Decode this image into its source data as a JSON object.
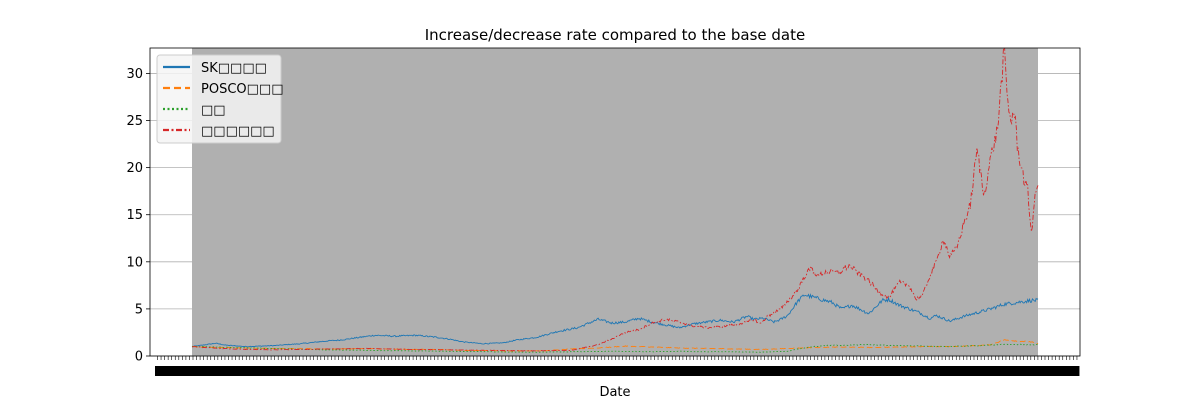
{
  "chart_data": {
    "type": "line",
    "title": "Increase/decrease rate compared to the base date",
    "xlabel": "Date",
    "ylabel": "",
    "ylim": [
      0,
      32.7
    ],
    "yticks": [
      0,
      5,
      10,
      15,
      20,
      25,
      30
    ],
    "grid": "horizontal",
    "plot_background": "#b0b0b0",
    "legend_position": "upper-left",
    "x_tick_labels_note": "overlapping, illegible",
    "series": [
      {
        "name": "SK□□□□",
        "color": "#1f77b4",
        "style": "solid",
        "keypoints": [
          [
            0,
            1.0
          ],
          [
            0.02,
            1.2
          ],
          [
            0.035,
            1.35
          ],
          [
            0.05,
            1.15
          ],
          [
            0.08,
            1.0
          ],
          [
            0.12,
            1.1
          ],
          [
            0.16,
            1.3
          ],
          [
            0.2,
            1.6
          ],
          [
            0.22,
            1.7
          ],
          [
            0.25,
            2.0
          ],
          [
            0.27,
            2.2
          ],
          [
            0.3,
            2.1
          ],
          [
            0.33,
            2.2
          ],
          [
            0.36,
            2.0
          ],
          [
            0.38,
            1.8
          ],
          [
            0.4,
            1.5
          ],
          [
            0.43,
            1.3
          ],
          [
            0.46,
            1.4
          ],
          [
            0.48,
            1.7
          ],
          [
            0.51,
            2.0
          ],
          [
            0.54,
            2.6
          ],
          [
            0.57,
            3.0
          ],
          [
            0.6,
            3.9
          ],
          [
            0.62,
            3.5
          ],
          [
            0.64,
            3.6
          ],
          [
            0.66,
            4.0
          ],
          [
            0.68,
            3.6
          ],
          [
            0.7,
            3.3
          ],
          [
            0.72,
            3.0
          ],
          [
            0.74,
            3.4
          ],
          [
            0.76,
            3.6
          ],
          [
            0.78,
            3.8
          ],
          [
            0.8,
            3.6
          ],
          [
            0.82,
            4.2
          ],
          [
            0.83,
            3.9
          ],
          [
            0.845,
            4.0
          ],
          [
            0.86,
            3.6
          ],
          [
            0.87,
            3.9
          ],
          [
            0.88,
            4.3
          ],
          [
            0.895,
            5.8
          ],
          [
            0.905,
            6.5
          ],
          [
            0.915,
            6.3
          ],
          [
            0.93,
            6.0
          ],
          [
            0.945,
            5.7
          ],
          [
            0.96,
            5.0
          ],
          [
            0.975,
            5.4
          ],
          [
            1.0,
            4.5
          ],
          [
            1.02,
            5.9
          ],
          [
            1.03,
            6.0
          ],
          [
            1.045,
            5.4
          ],
          [
            1.06,
            5.0
          ],
          [
            1.075,
            4.6
          ],
          [
            1.09,
            4.0
          ],
          [
            1.1,
            4.3
          ],
          [
            1.12,
            3.7
          ],
          [
            1.14,
            4.2
          ],
          [
            1.16,
            4.6
          ],
          [
            1.18,
            5.0
          ],
          [
            1.2,
            5.5
          ],
          [
            1.22,
            5.7
          ],
          [
            1.24,
            5.9
          ],
          [
            1.25,
            5.9
          ]
        ]
      },
      {
        "name": "POSCO□□□",
        "color": "#ff7f0e",
        "style": "dashed",
        "keypoints": [
          [
            0,
            1.0
          ],
          [
            0.04,
            0.9
          ],
          [
            0.08,
            0.85
          ],
          [
            0.12,
            0.8
          ],
          [
            0.16,
            0.78
          ],
          [
            0.2,
            0.75
          ],
          [
            0.26,
            0.78
          ],
          [
            0.32,
            0.7
          ],
          [
            0.36,
            0.7
          ],
          [
            0.4,
            0.6
          ],
          [
            0.46,
            0.55
          ],
          [
            0.52,
            0.55
          ],
          [
            0.56,
            0.75
          ],
          [
            0.6,
            0.85
          ],
          [
            0.64,
            1.05
          ],
          [
            0.68,
            0.95
          ],
          [
            0.72,
            0.85
          ],
          [
            0.76,
            0.8
          ],
          [
            0.8,
            0.75
          ],
          [
            0.84,
            0.7
          ],
          [
            0.88,
            0.8
          ],
          [
            0.92,
            0.9
          ],
          [
            0.96,
            0.95
          ],
          [
            1.0,
            0.9
          ],
          [
            1.04,
            0.95
          ],
          [
            1.08,
            1.0
          ],
          [
            1.12,
            1.0
          ],
          [
            1.16,
            1.1
          ],
          [
            1.18,
            1.2
          ],
          [
            1.2,
            1.7
          ],
          [
            1.22,
            1.6
          ],
          [
            1.24,
            1.5
          ],
          [
            1.25,
            1.3
          ]
        ]
      },
      {
        "name": "□□",
        "color": "#2ca02c",
        "style": "dotted",
        "keypoints": [
          [
            0,
            1.0
          ],
          [
            0.04,
            0.95
          ],
          [
            0.08,
            0.85
          ],
          [
            0.12,
            0.8
          ],
          [
            0.16,
            0.72
          ],
          [
            0.2,
            0.65
          ],
          [
            0.26,
            0.6
          ],
          [
            0.32,
            0.55
          ],
          [
            0.38,
            0.5
          ],
          [
            0.44,
            0.45
          ],
          [
            0.5,
            0.4
          ],
          [
            0.56,
            0.45
          ],
          [
            0.62,
            0.5
          ],
          [
            0.68,
            0.45
          ],
          [
            0.72,
            0.5
          ],
          [
            0.76,
            0.45
          ],
          [
            0.8,
            0.45
          ],
          [
            0.84,
            0.4
          ],
          [
            0.88,
            0.5
          ],
          [
            0.9,
            0.8
          ],
          [
            0.93,
            1.1
          ],
          [
            0.96,
            1.15
          ],
          [
            1.0,
            1.2
          ],
          [
            1.04,
            1.1
          ],
          [
            1.08,
            1.05
          ],
          [
            1.12,
            1.0
          ],
          [
            1.16,
            1.1
          ],
          [
            1.2,
            1.25
          ],
          [
            1.25,
            1.2
          ]
        ]
      },
      {
        "name": "□□□□□□",
        "color": "#d62728",
        "style": "dashdot",
        "keypoints": [
          [
            0,
            1.0
          ],
          [
            0.04,
            0.8
          ],
          [
            0.08,
            0.7
          ],
          [
            0.12,
            0.65
          ],
          [
            0.16,
            0.7
          ],
          [
            0.2,
            0.75
          ],
          [
            0.26,
            0.8
          ],
          [
            0.32,
            0.7
          ],
          [
            0.38,
            0.65
          ],
          [
            0.44,
            0.6
          ],
          [
            0.5,
            0.55
          ],
          [
            0.56,
            0.6
          ],
          [
            0.6,
            1.2
          ],
          [
            0.62,
            1.8
          ],
          [
            0.64,
            2.5
          ],
          [
            0.66,
            2.8
          ],
          [
            0.68,
            3.5
          ],
          [
            0.7,
            3.9
          ],
          [
            0.72,
            3.6
          ],
          [
            0.74,
            3.2
          ],
          [
            0.76,
            3.0
          ],
          [
            0.78,
            3.1
          ],
          [
            0.8,
            3.3
          ],
          [
            0.82,
            3.6
          ],
          [
            0.83,
            3.9
          ],
          [
            0.84,
            3.4
          ],
          [
            0.85,
            4.2
          ],
          [
            0.86,
            4.6
          ],
          [
            0.87,
            5.0
          ],
          [
            0.88,
            5.8
          ],
          [
            0.895,
            7.0
          ],
          [
            0.905,
            8.5
          ],
          [
            0.915,
            9.3
          ],
          [
            0.925,
            8.5
          ],
          [
            0.94,
            9.0
          ],
          [
            0.955,
            8.8
          ],
          [
            0.97,
            9.6
          ],
          [
            0.985,
            8.8
          ],
          [
            1.0,
            8.0
          ],
          [
            1.015,
            6.8
          ],
          [
            1.03,
            6.2
          ],
          [
            1.045,
            7.8
          ],
          [
            1.06,
            7.5
          ],
          [
            1.07,
            6.0
          ],
          [
            1.08,
            6.5
          ],
          [
            1.09,
            8.5
          ],
          [
            1.1,
            10.0
          ],
          [
            1.11,
            12.5
          ],
          [
            1.12,
            10.5
          ],
          [
            1.13,
            11.5
          ],
          [
            1.14,
            14.0
          ],
          [
            1.15,
            16.0
          ],
          [
            1.16,
            22.0
          ],
          [
            1.17,
            17.0
          ],
          [
            1.18,
            21.0
          ],
          [
            1.19,
            24.0
          ],
          [
            1.2,
            32.5
          ],
          [
            1.205,
            27.0
          ],
          [
            1.21,
            25.0
          ],
          [
            1.215,
            26.0
          ],
          [
            1.22,
            22.0
          ],
          [
            1.23,
            18.5
          ],
          [
            1.235,
            17.5
          ],
          [
            1.24,
            13.0
          ],
          [
            1.245,
            16.5
          ],
          [
            1.25,
            18.5
          ]
        ]
      }
    ]
  }
}
